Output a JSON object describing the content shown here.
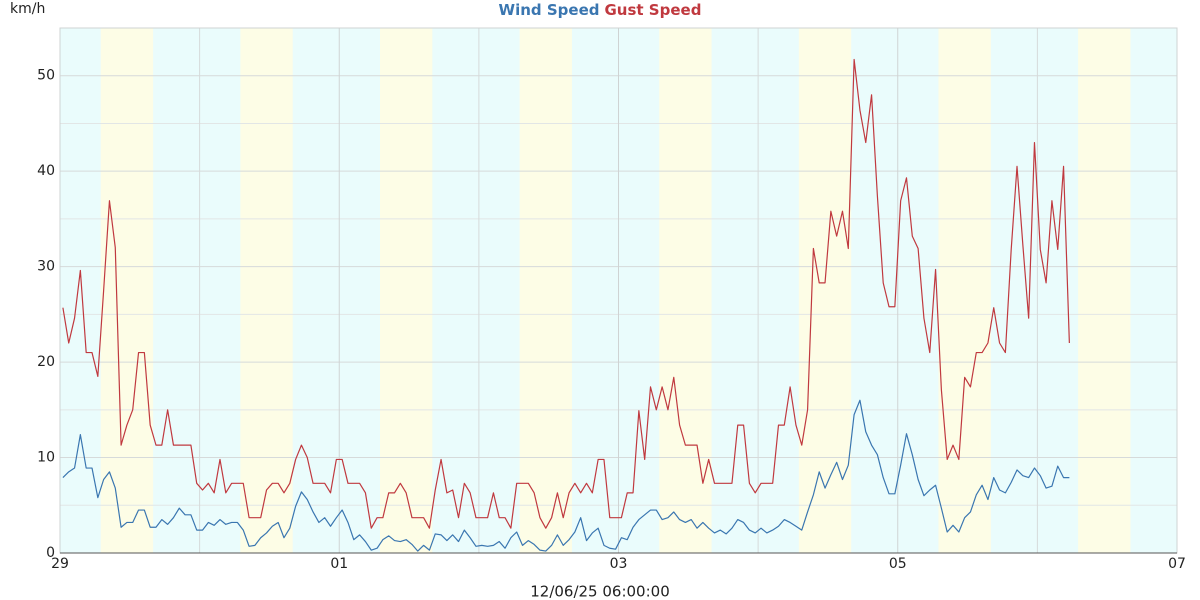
{
  "chart_data": {
    "type": "line",
    "unit": "km/h",
    "footer": "12/06/25 06:00:00",
    "xlim": [
      0,
      192
    ],
    "xticks": [
      {
        "value": 0,
        "label": "29"
      },
      {
        "value": 48,
        "label": "01"
      },
      {
        "value": 96,
        "label": "03"
      },
      {
        "value": 144,
        "label": "05"
      },
      {
        "value": 192,
        "label": "07"
      }
    ],
    "x_minor_ticks": [
      24,
      72,
      120,
      168
    ],
    "ylim": [
      0,
      55
    ],
    "yticks": [
      0,
      10,
      20,
      30,
      40,
      50
    ],
    "y_minor_ticks": [
      5,
      15,
      25,
      35,
      45
    ],
    "grid": true,
    "plot_background": "#eafcfc",
    "band_color": "#fdfde6",
    "bands": [
      {
        "start": 7,
        "end": 16
      },
      {
        "start": 31,
        "end": 40
      },
      {
        "start": 55,
        "end": 64
      },
      {
        "start": 79,
        "end": 88
      },
      {
        "start": 103,
        "end": 112
      },
      {
        "start": 127,
        "end": 136
      },
      {
        "start": 151,
        "end": 160
      },
      {
        "start": 175,
        "end": 184
      }
    ],
    "x": [
      0.5,
      1.5,
      2.5,
      3.5,
      4.5,
      5.5,
      6.5,
      7.5,
      8.5,
      9.5,
      10.5,
      11.5,
      12.5,
      13.5,
      14.5,
      15.5,
      16.5,
      17.5,
      18.5,
      19.5,
      20.5,
      21.5,
      22.5,
      23.5,
      24.5,
      25.5,
      26.5,
      27.5,
      28.5,
      29.5,
      30.5,
      31.5,
      32.5,
      33.5,
      34.5,
      35.5,
      36.5,
      37.5,
      38.5,
      39.5,
      40.5,
      41.5,
      42.5,
      43.5,
      44.5,
      45.5,
      46.5,
      47.5,
      48.5,
      49.5,
      50.5,
      51.5,
      52.5,
      53.5,
      54.5,
      55.5,
      56.5,
      57.5,
      58.5,
      59.5,
      60.5,
      61.5,
      62.5,
      63.5,
      64.5,
      65.5,
      66.5,
      67.5,
      68.5,
      69.5,
      70.5,
      71.5,
      72.5,
      73.5,
      74.5,
      75.5,
      76.5,
      77.5,
      78.5,
      79.5,
      80.5,
      81.5,
      82.5,
      83.5,
      84.5,
      85.5,
      86.5,
      87.5,
      88.5,
      89.5,
      90.5,
      91.5,
      92.5,
      93.5,
      94.5,
      95.5,
      96.5,
      97.5,
      98.5,
      99.5,
      100.5,
      101.5,
      102.5,
      103.5,
      104.5,
      105.5,
      106.5,
      107.5,
      108.5,
      109.5,
      110.5,
      111.5,
      112.5,
      113.5,
      114.5,
      115.5,
      116.5,
      117.5,
      118.5,
      119.5,
      120.5,
      121.5,
      122.5,
      123.5,
      124.5,
      125.5,
      126.5,
      127.5,
      128.5,
      129.5,
      130.5,
      131.5,
      132.5,
      133.5,
      134.5,
      135.5,
      136.5,
      137.5,
      138.5,
      139.5,
      140.5,
      141.5,
      142.5,
      143.5,
      144.5,
      145.5,
      146.5,
      147.5,
      148.5,
      149.5,
      150.5,
      151.5,
      152.5,
      153.5,
      154.5,
      155.5,
      156.5,
      157.5,
      158.5,
      159.5,
      160.5,
      161.5,
      162.5,
      163.5,
      164.5,
      165.5,
      166.5,
      167.5,
      168.5,
      169.5,
      170.5,
      171.5,
      172.5,
      173.5
    ],
    "series": [
      {
        "name": "Wind Speed",
        "color": "#3a76b0",
        "values": [
          7.9,
          8.5,
          8.9,
          12.4,
          8.9,
          8.9,
          5.8,
          7.7,
          8.5,
          6.8,
          2.7,
          3.2,
          3.2,
          4.5,
          4.5,
          2.7,
          2.7,
          3.5,
          3,
          3.7,
          4.7,
          4,
          4,
          2.4,
          2.4,
          3.2,
          2.9,
          3.5,
          3,
          3.2,
          3.2,
          2.4,
          0.7,
          0.8,
          1.6,
          2.1,
          2.8,
          3.2,
          1.6,
          2.6,
          4.9,
          6.4,
          5.6,
          4.3,
          3.2,
          3.7,
          2.8,
          3.7,
          4.5,
          3.2,
          1.4,
          1.9,
          1.2,
          0.3,
          0.5,
          1.4,
          1.8,
          1.3,
          1.2,
          1.4,
          0.9,
          0.2,
          0.8,
          0.3,
          2,
          1.9,
          1.3,
          1.9,
          1.2,
          2.4,
          1.6,
          0.7,
          0.8,
          0.7,
          0.8,
          1.2,
          0.5,
          1.6,
          2.2,
          0.8,
          1.3,
          0.9,
          0.3,
          0.2,
          0.8,
          1.9,
          0.8,
          1.4,
          2.2,
          3.7,
          1.3,
          2.1,
          2.6,
          0.8,
          0.5,
          0.4,
          1.6,
          1.4,
          2.7,
          3.5,
          4,
          4.5,
          4.5,
          3.5,
          3.7,
          4.3,
          3.5,
          3.2,
          3.5,
          2.6,
          3.2,
          2.6,
          2.1,
          2.4,
          2,
          2.6,
          3.5,
          3.2,
          2.4,
          2.1,
          2.6,
          2.1,
          2.4,
          2.8,
          3.5,
          3.2,
          2.8,
          2.4,
          4.3,
          6.1,
          8.5,
          6.8,
          8.2,
          9.5,
          7.7,
          9.2,
          14.5,
          16,
          12.7,
          11.3,
          10.3,
          7.9,
          6.2,
          6.2,
          9.2,
          12.5,
          10.3,
          7.7,
          6,
          6.6,
          7.1,
          4.7,
          2.2,
          2.9,
          2.2,
          3.7,
          4.3,
          6.1,
          7.1,
          5.6,
          7.9,
          6.6,
          6.3,
          7.4,
          8.7,
          8.1,
          7.9,
          8.9,
          8.1,
          6.8,
          7,
          9.1,
          7.9,
          7.9
        ]
      },
      {
        "name": "Gust Speed",
        "color": "#c0393f",
        "values": [
          25.7,
          22,
          24.6,
          29.6,
          21,
          21,
          18.5,
          27.5,
          36.9,
          32,
          11.3,
          13.4,
          15,
          21,
          21,
          13.4,
          11.3,
          11.3,
          15,
          11.3,
          11.3,
          11.3,
          11.3,
          7.3,
          6.6,
          7.3,
          6.3,
          9.8,
          6.3,
          7.3,
          7.3,
          7.3,
          3.7,
          3.7,
          3.7,
          6.6,
          7.3,
          7.3,
          6.3,
          7.3,
          9.8,
          11.3,
          10,
          7.3,
          7.3,
          7.3,
          6.3,
          9.8,
          9.8,
          7.3,
          7.3,
          7.3,
          6.3,
          2.6,
          3.7,
          3.7,
          6.3,
          6.3,
          7.3,
          6.3,
          3.7,
          3.7,
          3.7,
          2.6,
          6.6,
          9.8,
          6.3,
          6.6,
          3.7,
          7.3,
          6.3,
          3.7,
          3.7,
          3.7,
          6.3,
          3.7,
          3.7,
          2.6,
          7.3,
          7.3,
          7.3,
          6.3,
          3.7,
          2.6,
          3.7,
          6.3,
          3.7,
          6.3,
          7.3,
          6.3,
          7.3,
          6.3,
          9.8,
          9.8,
          3.7,
          3.7,
          3.7,
          6.3,
          6.3,
          14.9,
          9.8,
          17.4,
          15,
          17.4,
          15,
          18.4,
          13.4,
          11.3,
          11.3,
          11.3,
          7.3,
          9.8,
          7.3,
          7.3,
          7.3,
          7.3,
          13.4,
          13.4,
          7.3,
          6.3,
          7.3,
          7.3,
          7.3,
          13.4,
          13.4,
          17.4,
          13.4,
          11.3,
          15,
          31.9,
          28.3,
          28.3,
          35.8,
          33.2,
          35.8,
          31.9,
          51.7,
          46.4,
          43,
          48,
          37.4,
          28.3,
          25.8,
          25.8,
          36.9,
          39.3,
          33.2,
          31.9,
          24.6,
          21,
          29.7,
          17.1,
          9.8,
          11.3,
          9.8,
          18.4,
          17.4,
          21,
          21,
          22,
          25.7,
          22,
          21,
          31.8,
          40.5,
          32.3,
          24.6,
          43,
          31.8,
          28.3,
          36.9,
          31.8,
          40.5,
          22
        ]
      }
    ]
  }
}
